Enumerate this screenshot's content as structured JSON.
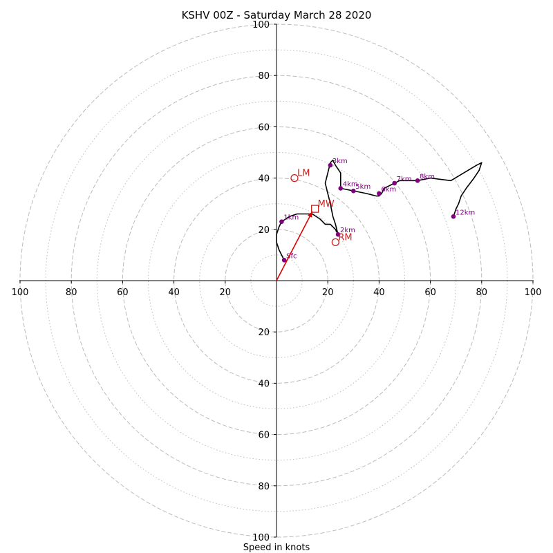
{
  "chart_data": {
    "type": "hodograph",
    "title": "KSHV 00Z - Saturday March 28 2020",
    "xlabel": "Speed in knots",
    "xlim": [
      -100,
      100
    ],
    "ylim": [
      -100,
      100
    ],
    "ring_major": [
      20,
      40,
      60,
      80,
      100
    ],
    "ring_minor": [
      10,
      30,
      50,
      70,
      90
    ],
    "x_tick_labels": [
      "100",
      "80",
      "60",
      "40",
      "20",
      "20",
      "40",
      "60",
      "80",
      "100"
    ],
    "x_tick_values": [
      -100,
      -80,
      -60,
      -40,
      -20,
      20,
      40,
      60,
      80,
      100
    ],
    "y_tick_labels_pos": [
      "20",
      "40",
      "60",
      "80",
      "100"
    ],
    "y_tick_values_pos": [
      20,
      40,
      60,
      80,
      100
    ],
    "y_tick_labels_neg": [
      "20",
      "40",
      "60",
      "80",
      "100"
    ],
    "y_tick_values_neg": [
      -20,
      -40,
      -60,
      -80,
      -100
    ],
    "hodograph_line": [
      [
        3,
        8
      ],
      [
        1,
        12
      ],
      [
        0,
        15
      ],
      [
        0,
        18
      ],
      [
        1,
        21
      ],
      [
        2,
        23
      ],
      [
        5,
        25
      ],
      [
        8,
        26
      ],
      [
        12,
        26
      ],
      [
        14,
        26
      ],
      [
        17,
        24
      ],
      [
        19,
        22
      ],
      [
        21,
        22
      ],
      [
        23,
        20
      ],
      [
        24,
        18
      ],
      [
        23,
        22
      ],
      [
        22,
        25
      ],
      [
        21,
        30
      ],
      [
        20,
        34
      ],
      [
        19,
        38
      ],
      [
        20,
        42
      ],
      [
        21,
        46
      ],
      [
        22,
        47
      ],
      [
        23,
        45
      ],
      [
        25,
        42
      ],
      [
        25,
        36
      ],
      [
        30,
        35
      ],
      [
        35,
        34
      ],
      [
        39,
        33
      ],
      [
        40,
        33
      ],
      [
        41,
        34
      ],
      [
        42,
        36
      ],
      [
        44,
        37
      ],
      [
        46,
        38
      ],
      [
        48,
        39
      ],
      [
        55,
        39
      ],
      [
        60,
        40
      ],
      [
        68,
        39
      ],
      [
        73,
        42
      ],
      [
        78,
        45
      ],
      [
        80,
        46
      ],
      [
        79,
        43
      ],
      [
        77,
        40
      ],
      [
        74,
        36
      ],
      [
        72,
        33
      ],
      [
        71,
        30
      ],
      [
        70,
        28
      ],
      [
        69,
        25
      ]
    ],
    "height_markers": [
      {
        "label": "Sfc",
        "x": 3,
        "y": 8
      },
      {
        "label": "1km",
        "x": 2,
        "y": 23
      },
      {
        "label": "2km",
        "x": 24,
        "y": 18
      },
      {
        "label": "3km",
        "x": 21,
        "y": 45
      },
      {
        "label": "4km",
        "x": 25,
        "y": 36
      },
      {
        "label": "5km",
        "x": 30,
        "y": 35
      },
      {
        "label": "6km",
        "x": 40,
        "y": 34
      },
      {
        "label": "7km",
        "x": 46,
        "y": 38
      },
      {
        "label": "8km",
        "x": 55,
        "y": 39
      },
      {
        "label": "12km",
        "x": 69,
        "y": 25
      }
    ],
    "storm_motions": [
      {
        "label": "LM",
        "x": 7,
        "y": 40,
        "marker": "circle"
      },
      {
        "label": "MW",
        "x": 15,
        "y": 28,
        "marker": "square"
      },
      {
        "label": "RM",
        "x": 23,
        "y": 15,
        "marker": "circle"
      }
    ],
    "shear_vector": {
      "from": [
        0,
        0
      ],
      "to": [
        14,
        27
      ]
    },
    "colors": {
      "ring": "#bbbbbb",
      "hodograph": "#000000",
      "marker": "#800080",
      "storm_motion": "#cc2222",
      "shear_vector": "#dd0000"
    }
  }
}
